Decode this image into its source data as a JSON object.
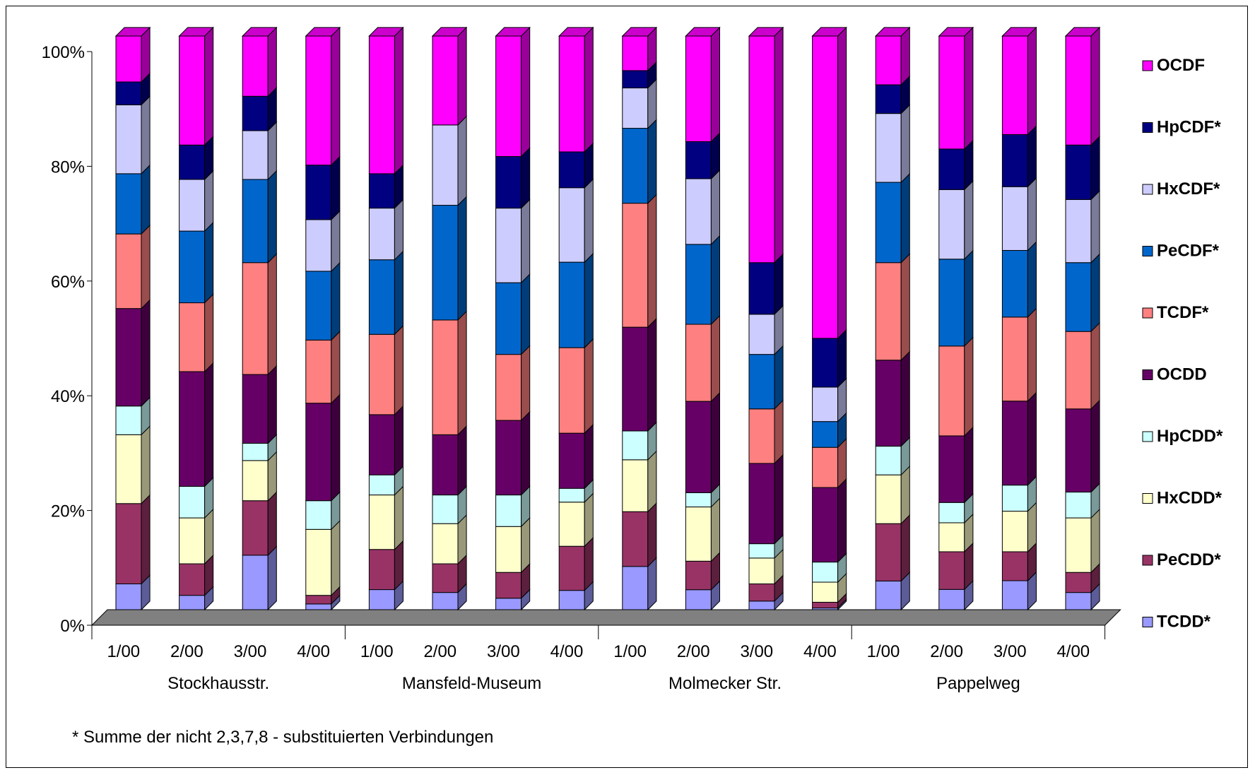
{
  "chart_data": {
    "type": "bar",
    "stacked": "percent",
    "three_d": true,
    "y_ticks": [
      "0%",
      "20%",
      "40%",
      "60%",
      "80%",
      "100%"
    ],
    "ylim": [
      0,
      100
    ],
    "categories": [
      "1/00",
      "2/00",
      "3/00",
      "4/00",
      "1/00",
      "2/00",
      "3/00",
      "4/00",
      "1/00",
      "2/00",
      "3/00",
      "4/00",
      "1/00",
      "2/00",
      "3/00",
      "4/00"
    ],
    "groups": [
      {
        "label": "Stockhausstr.",
        "from": 0,
        "to": 3
      },
      {
        "label": "Mansfeld-Museum",
        "from": 4,
        "to": 7
      },
      {
        "label": "Molmecker Str.",
        "from": 8,
        "to": 11
      },
      {
        "label": "Pappelweg",
        "from": 12,
        "to": 15
      }
    ],
    "legend_position": "right",
    "series": [
      {
        "name": "TCDD*",
        "color": "#9999ff",
        "values": [
          4.5,
          2.5,
          9.5,
          1,
          3.5,
          3,
          2,
          3.5,
          7.5,
          3.5,
          1.5,
          0.3,
          5,
          3.5,
          5,
          3
        ]
      },
      {
        "name": "PeCDD*",
        "color": "#993366",
        "values": [
          14,
          5.5,
          9.5,
          1.5,
          7,
          5,
          4.5,
          8,
          9.5,
          5,
          3,
          1,
          10,
          6.5,
          5,
          3.5
        ]
      },
      {
        "name": "HxCDD*",
        "color": "#ffffcc",
        "values": [
          12,
          8,
          7,
          11.5,
          9.5,
          7,
          8,
          8,
          9,
          9.5,
          4.5,
          3.5,
          8.5,
          5,
          7,
          9.5
        ]
      },
      {
        "name": "HpCDD*",
        "color": "#ccffff",
        "values": [
          5,
          5.5,
          3,
          5,
          3.5,
          5,
          5.5,
          2.5,
          5,
          2.5,
          2.5,
          3.5,
          5,
          3.5,
          4.5,
          4.5
        ]
      },
      {
        "name": "OCDD",
        "color": "#660066",
        "values": [
          17,
          20,
          12,
          17,
          10.5,
          10.5,
          13,
          10,
          18,
          16,
          14,
          13,
          15,
          11.5,
          14.5,
          14.5
        ]
      },
      {
        "name": "TCDF*",
        "color": "#ff8080",
        "values": [
          13,
          12,
          19.5,
          11,
          14,
          20,
          11.5,
          15.5,
          21.5,
          13.5,
          9.5,
          7,
          17,
          15.5,
          14.5,
          13.5
        ]
      },
      {
        "name": "PeCDF*",
        "color": "#0066cc",
        "values": [
          10.5,
          12.5,
          14.5,
          12,
          13,
          20,
          12.5,
          15.5,
          13,
          14,
          9.5,
          4.5,
          14,
          15,
          11.5,
          12
        ]
      },
      {
        "name": "HxCDF*",
        "color": "#ccccff",
        "values": [
          12,
          9,
          8.5,
          9,
          9,
          14,
          13,
          13.5,
          7,
          11.5,
          7,
          6,
          12,
          12,
          11,
          11
        ]
      },
      {
        "name": "HpCDF*",
        "color": "#000080",
        "values": [
          4,
          6,
          6,
          9.5,
          6,
          0,
          9,
          6.5,
          3,
          6.5,
          9,
          8.5,
          5,
          7,
          9,
          9.5
        ]
      },
      {
        "name": "OCDF",
        "color": "#ff00ff",
        "values": [
          8,
          19,
          10.5,
          22.5,
          24,
          15.5,
          21,
          21,
          6,
          18.5,
          39.5,
          52.7,
          8.5,
          19.5,
          17,
          19
        ]
      }
    ]
  },
  "footnote": "*  Summe der nicht 2,3,7,8 - substituierten Verbindungen"
}
